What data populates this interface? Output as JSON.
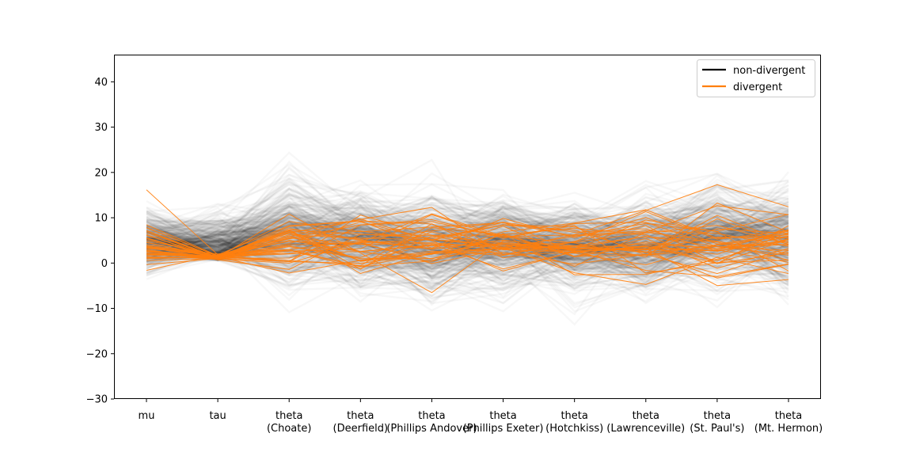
{
  "chart_data": {
    "type": "line",
    "subtype": "parallel-coordinates",
    "title": "",
    "xlabel": "",
    "ylabel": "",
    "ylim": [
      -30,
      46
    ],
    "y_ticks": [
      -30,
      -20,
      -10,
      0,
      10,
      20,
      30,
      40
    ],
    "y_tick_labels": [
      "−30",
      "−20",
      "−10",
      "0",
      "10",
      "20",
      "30",
      "40"
    ],
    "categories": [
      [
        "mu"
      ],
      [
        "tau"
      ],
      [
        "theta",
        "(Choate)"
      ],
      [
        "theta",
        "(Deerfield)"
      ],
      [
        "theta",
        "(Phillips Andover)"
      ],
      [
        "theta",
        "(Phillips Exeter)"
      ],
      [
        "theta",
        "(Hotchkiss)"
      ],
      [
        "theta",
        "(Lawrenceville)"
      ],
      [
        "theta",
        "(St. Paul's)"
      ],
      [
        "theta",
        "(Mt. Hermon)"
      ]
    ],
    "legend": {
      "position": "top-right",
      "entries": [
        {
          "label": "non-divergent",
          "color": "#000000"
        },
        {
          "label": "divergent",
          "color": "#ff7f0e"
        }
      ]
    },
    "series": [
      {
        "name": "non-divergent",
        "color": "#000000",
        "alpha": 0.03,
        "count": 400,
        "center": [
          4.4,
          3.6,
          6.3,
          5.0,
          3.9,
          4.8,
          3.6,
          4.0,
          6.3,
          4.9
        ],
        "spread": [
          3.3,
          3.2,
          5.7,
          4.6,
          5.4,
          4.8,
          4.5,
          4.8,
          5.1,
          5.3
        ]
      },
      {
        "name": "divergent",
        "color": "#ff7f0e",
        "alpha": 0.9,
        "count": 40,
        "center": [
          4.5,
          1.3,
          4.8,
          4.0,
          4.1,
          4.3,
          3.6,
          3.8,
          4.6,
          4.8
        ],
        "spread": [
          3.2,
          0.35,
          3.4,
          3.5,
          3.6,
          3.7,
          3.5,
          3.6,
          3.7,
          3.8
        ]
      }
    ]
  }
}
